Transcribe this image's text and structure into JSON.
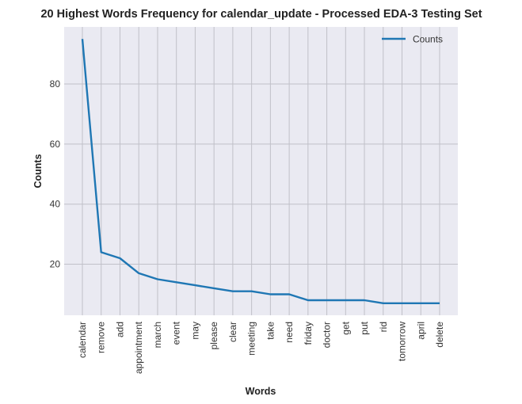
{
  "chart_data": {
    "type": "line",
    "title": "20 Highest Words Frequency for calendar_update - Processed EDA-3 Testing Set",
    "xlabel": "Words",
    "ylabel": "Counts",
    "categories": [
      "calendar",
      "remove",
      "add",
      "appointment",
      "march",
      "event",
      "may",
      "please",
      "clear",
      "meeting",
      "take",
      "need",
      "friday",
      "doctor",
      "get",
      "put",
      "rid",
      "tomorrow",
      "april",
      "delete"
    ],
    "series": [
      {
        "name": "Counts",
        "values": [
          95,
          24,
          22,
          17,
          15,
          14,
          13,
          12,
          11,
          11,
          10,
          10,
          8,
          8,
          8,
          8,
          7,
          7,
          7,
          7
        ]
      }
    ],
    "ylim": [
      3,
      99
    ],
    "yticks": [
      20,
      40,
      60,
      80
    ],
    "grid": true,
    "legend_position": "top-right",
    "colors": {
      "line": "#1f77b4",
      "plot_bg": "#eaeaf2",
      "grid": "#c0c0c8"
    }
  }
}
